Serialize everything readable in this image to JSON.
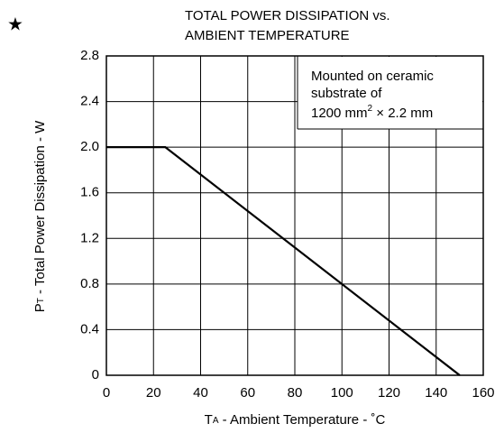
{
  "chart_data": {
    "type": "line",
    "marker": "★",
    "title": [
      "TOTAL POWER DISSIPATION vs.",
      "AMBIENT TEMPERATURE"
    ],
    "xlabel": {
      "symbol": "T",
      "subscript": "A",
      "text": " - Ambient Temperature - ˚C"
    },
    "ylabel": {
      "symbol": "P",
      "subscript": "T",
      "text": " - Total Power Dissipation - W"
    },
    "annotation": {
      "line1": "Mounted on ceramic",
      "line2": "substrate of",
      "line3": "1200 mm",
      "sup": "2",
      "line3_rest": " × 2.2 mm"
    },
    "series": [
      {
        "x": [
          0,
          25,
          150
        ],
        "values": [
          2.0,
          2.0,
          0
        ],
        "color": "#000000"
      }
    ],
    "xlim": [
      0,
      160
    ],
    "xticks": [
      0,
      20,
      40,
      60,
      80,
      100,
      120,
      140,
      160
    ],
    "ylim": [
      0,
      2.8
    ],
    "yticks": [
      0,
      0.4,
      0.8,
      1.2,
      1.6,
      {
        "value": 2,
        "label": "2.0"
      },
      2.4,
      2.8
    ],
    "grid": true
  }
}
